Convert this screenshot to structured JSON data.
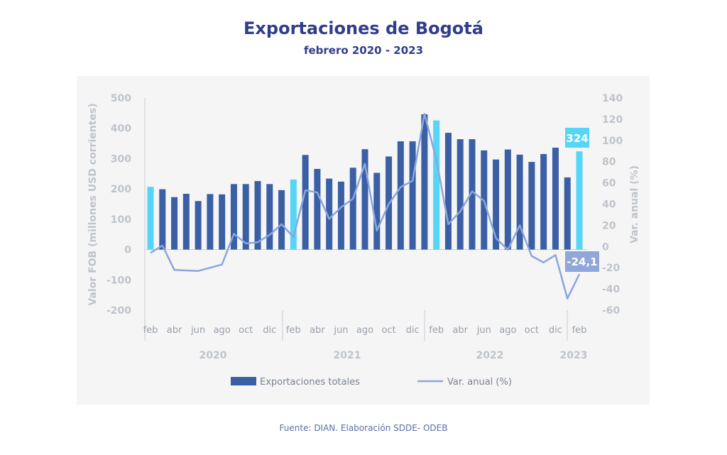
{
  "header": {
    "title": "Exportaciones de Bogotá",
    "subtitle": "febrero 2020 - 2023"
  },
  "footer": "Fuente: DIAN. Elaboración SDDE- ODEB",
  "colors": {
    "bar": "#3a5fa5",
    "bar_highlight": "#57d5f7",
    "line": "#8ba6dc",
    "label_line_bg": "#8fa7d9"
  },
  "chart_data": {
    "type": "bar+line",
    "title": "Exportaciones de Bogotá",
    "ylabel": "Valor FOB (millones USD corrientes)",
    "y2label": "Var. anual (%)",
    "ylim": [
      -200,
      500
    ],
    "y2lim": [
      -60,
      140
    ],
    "yticks": [
      "500",
      "400",
      "300",
      "200",
      "100",
      "0",
      "-100",
      "-200"
    ],
    "y2ticks": [
      "140",
      "120",
      "100",
      "80",
      "60",
      "40",
      "20",
      "0",
      "-20",
      "-40",
      "-60"
    ],
    "month_labels": [
      "feb",
      "abr",
      "jun",
      "ago",
      "oct",
      "dic",
      "feb",
      "abr",
      "jun",
      "ago",
      "oct",
      "dic",
      "feb",
      "abr",
      "jun",
      "ago",
      "oct",
      "dic",
      "feb"
    ],
    "years": [
      "2020",
      "2021",
      "2022",
      "2023"
    ],
    "categories": [
      "feb-20",
      "mar-20",
      "abr-20",
      "may-20",
      "jun-20",
      "jul-20",
      "ago-20",
      "sep-20",
      "oct-20",
      "nov-20",
      "dic-20",
      "ene-21",
      "feb-21",
      "mar-21",
      "abr-21",
      "may-21",
      "jun-21",
      "jul-21",
      "ago-21",
      "sep-21",
      "oct-21",
      "nov-21",
      "dic-21",
      "ene-22",
      "feb-22",
      "mar-22",
      "abr-22",
      "may-22",
      "jun-22",
      "jul-22",
      "ago-22",
      "sep-22",
      "oct-22",
      "nov-22",
      "dic-22",
      "ene-23",
      "feb-23"
    ],
    "series": [
      {
        "name": "Exportaciones totales",
        "axis": "left",
        "type": "bar",
        "values": [
          207,
          199,
          173,
          184,
          160,
          183,
          182,
          216,
          216,
          226,
          216,
          196,
          231,
          312,
          266,
          234,
          224,
          270,
          331,
          253,
          307,
          357,
          357,
          446,
          426,
          385,
          364,
          364,
          327,
          297,
          330,
          313,
          289,
          315,
          336,
          238,
          324
        ]
      },
      {
        "name": "Var. anual (%)",
        "axis": "right",
        "type": "line",
        "values": [
          -4,
          3,
          -20,
          -20.5,
          -21,
          -18,
          -15,
          14,
          5,
          6,
          13,
          23,
          11,
          55,
          53,
          28,
          39,
          47,
          80,
          17,
          42,
          58,
          64,
          127,
          84,
          23,
          35,
          54,
          45,
          10,
          -1,
          22,
          -7,
          -13,
          -6,
          -47,
          -24.1
        ]
      }
    ],
    "highlighted": [
      "feb-20",
      "feb-21",
      "feb-22",
      "feb-23"
    ],
    "annotations": [
      "324",
      "-24,1"
    ],
    "legend": "bottom"
  }
}
